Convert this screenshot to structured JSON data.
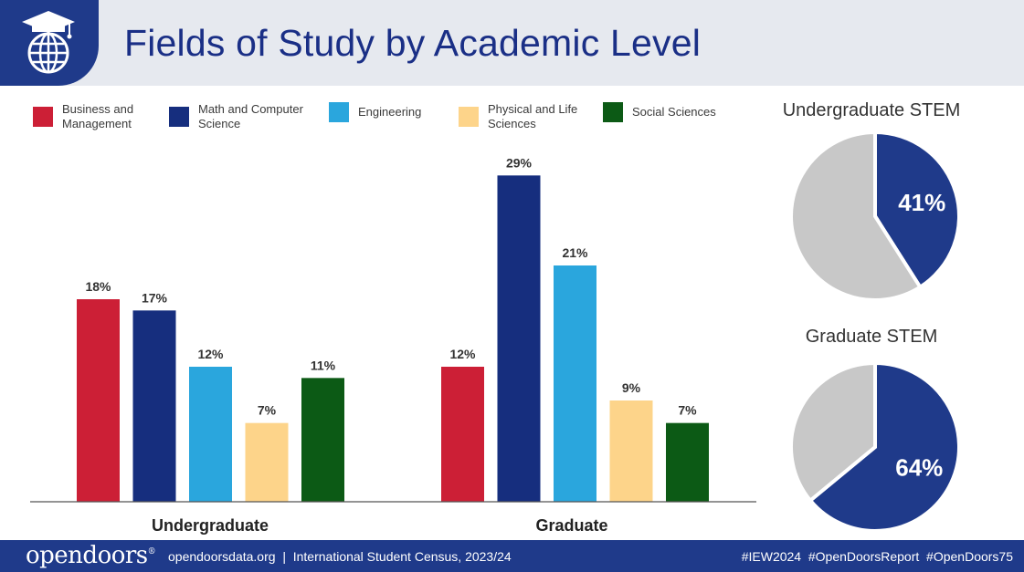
{
  "header": {
    "title": "Fields of Study by Academic Level",
    "logo_icon": "graduation-globe-icon"
  },
  "colors": {
    "business": "#cc1f36",
    "math_cs": "#162e7e",
    "engineering": "#2aa6dd",
    "physical_life": "#fdd48a",
    "social": "#0c5a15",
    "pie_rest": "#c8c8c8",
    "brand_blue": "#1f3a8a"
  },
  "chart_data": [
    {
      "type": "bar",
      "categories": [
        "Undergraduate",
        "Graduate"
      ],
      "series": [
        {
          "name": "Business and Management",
          "values": [
            18,
            12
          ]
        },
        {
          "name": "Math and Computer Science",
          "values": [
            17,
            29
          ]
        },
        {
          "name": "Engineering",
          "values": [
            12,
            21
          ]
        },
        {
          "name": "Physical and Life Sciences",
          "values": [
            7,
            9
          ]
        },
        {
          "name": "Social Sciences",
          "values": [
            11,
            7
          ]
        }
      ],
      "value_labels": [
        [
          "18%",
          "17%",
          "12%",
          "7%",
          "11%"
        ],
        [
          "12%",
          "29%",
          "21%",
          "9%",
          "7%"
        ]
      ],
      "unit": "%",
      "legend": "top",
      "grid": false,
      "ylim": [
        0,
        30
      ]
    },
    {
      "type": "pie",
      "title": "Undergraduate STEM",
      "values": [
        41,
        59
      ],
      "labels": [
        "41%",
        ""
      ]
    },
    {
      "type": "pie",
      "title": "Graduate STEM",
      "values": [
        64,
        36
      ],
      "labels": [
        "64%",
        ""
      ]
    }
  ],
  "footer": {
    "brand": "opendoors",
    "brand_mark": "®",
    "credit": "opendoorsdata.org  |  International Student Census, 2023/24",
    "hashtags": "#IEW2024  #OpenDoorsReport  #OpenDoors75"
  }
}
